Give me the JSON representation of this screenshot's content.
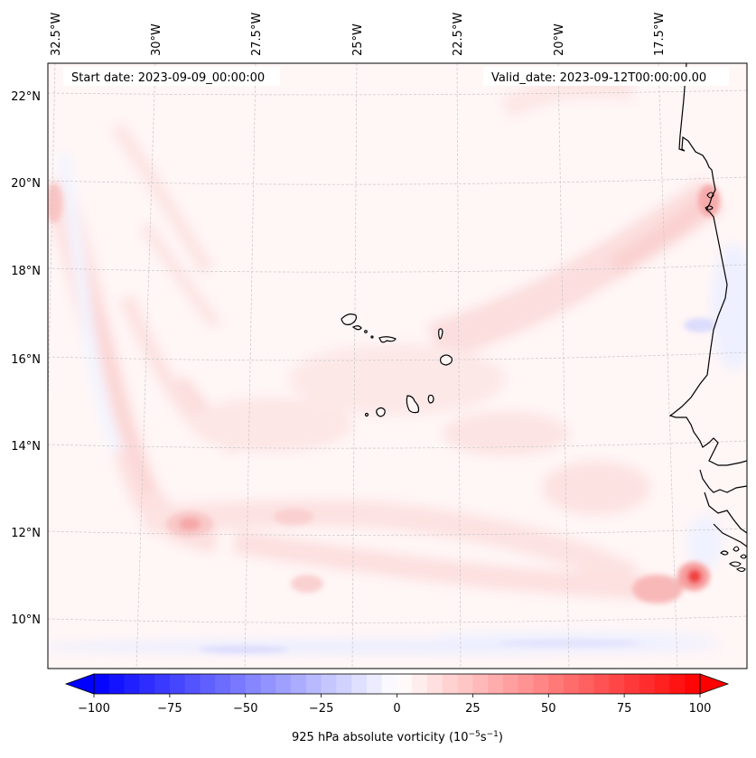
{
  "figure": {
    "type": "map",
    "projection_note": "Lambert-like conic projection with curved graticule",
    "region": "Eastern tropical North Atlantic / West African coast / Cape Verde",
    "annotations": {
      "start_date": "Start date: 2023-09-09_00:00:00",
      "valid_date": "Valid_date: 2023-09-12T00:00:00.00"
    },
    "longitude_labels": [
      "32.5°W",
      "30°W",
      "27.5°W",
      "25°W",
      "22.5°W",
      "20°W",
      "17.5°W"
    ],
    "latitude_labels": [
      "22°N",
      "20°N",
      "18°N",
      "16°N",
      "14°N",
      "12°N",
      "10°N"
    ],
    "field": {
      "variable": "925 hPa absolute vorticity",
      "units": "10^-5 s^-1",
      "background_value_approx": 3,
      "features": [
        {
          "name": "vorticity maximum near West African coast",
          "lon": -17.3,
          "lat": 11.0,
          "value_approx": 80
        },
        {
          "name": "secondary maximum west of coast",
          "lon": -18.4,
          "lat": 10.8,
          "value_approx": 45
        },
        {
          "name": "maximum near Mauritanian coast",
          "lon": -16.8,
          "lat": 19.6,
          "value_approx": 35
        },
        {
          "name": "maximum southwest",
          "lon": -29.5,
          "lat": 12.1,
          "value_approx": 35
        },
        {
          "name": "band of weak negative vorticity along ~9.5°N",
          "lon": -25.0,
          "lat": 9.5,
          "value_approx": -20
        },
        {
          "name": "weak negative area off Mauritania",
          "lon": -16.7,
          "lat": 16.6,
          "value_approx": -20
        }
      ]
    },
    "colorbar": {
      "label": "925 hPa absolute vorticity (10",
      "label_exp1": "−5",
      "label_mid": "s",
      "label_exp2": "−1",
      "label_end": ")",
      "ticks": [
        "−100",
        "−75",
        "−50",
        "−25",
        "0",
        "25",
        "50",
        "75",
        "100"
      ],
      "tick_values": [
        -100,
        -75,
        -50,
        -25,
        0,
        25,
        50,
        75,
        100
      ],
      "min": -100,
      "max": 100,
      "step": 5,
      "extend": "both",
      "colormap": "bwr",
      "min_color": "#0000ff",
      "mid_color": "#ffffff",
      "max_color": "#ff0000"
    }
  }
}
